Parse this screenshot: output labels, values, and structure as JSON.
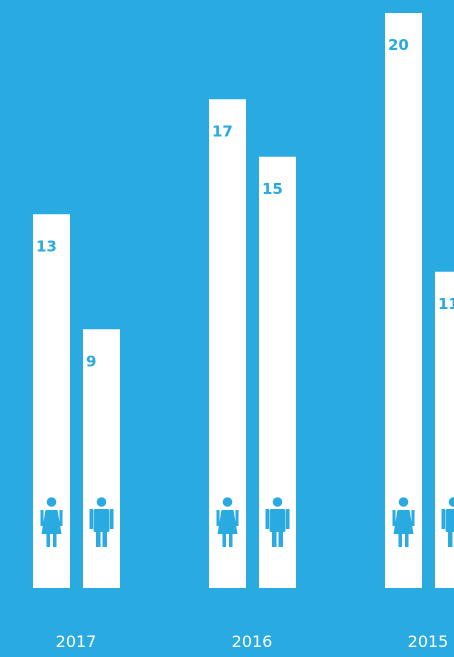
{
  "colors": {
    "background": "#29aae1",
    "bar": "#ffffff",
    "value_text": "#29aae1",
    "label_text": "#ffffff",
    "icon": "#29aae1"
  },
  "chart_data": {
    "type": "bar",
    "categories": [
      "2017",
      "2016",
      "2015"
    ],
    "series": [
      {
        "icon": "female-person-icon",
        "values": [
          13,
          17,
          20
        ]
      },
      {
        "icon": "male-person-icon",
        "values": [
          9,
          15,
          11
        ]
      }
    ],
    "ylim": [
      0,
      20
    ],
    "grid": false,
    "legend": "none"
  }
}
